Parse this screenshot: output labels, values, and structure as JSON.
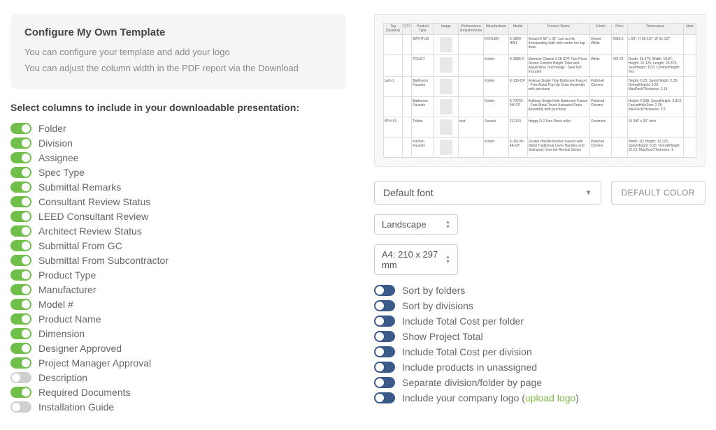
{
  "config_box": {
    "title": "Configure My Own Template",
    "line1": "You can configure your template and add your logo",
    "line2": "You can adjust the column width in the PDF report via the Download"
  },
  "section_title": "Select columns to include in your downloadable presentation:",
  "columns": [
    {
      "label": "Folder",
      "on": true
    },
    {
      "label": "Division",
      "on": true
    },
    {
      "label": "Assignee",
      "on": true
    },
    {
      "label": "Spec Type",
      "on": true
    },
    {
      "label": "Submittal Remarks",
      "on": true
    },
    {
      "label": "Consultant Review Status",
      "on": true
    },
    {
      "label": "LEED Consultant Review",
      "on": true
    },
    {
      "label": "Architect Review Status",
      "on": true
    },
    {
      "label": "Submittal From GC",
      "on": true
    },
    {
      "label": "Submittal From Subcontractor",
      "on": true
    },
    {
      "label": "Product Type",
      "on": true
    },
    {
      "label": "Manufacturer",
      "on": true
    },
    {
      "label": "Model #",
      "on": true
    },
    {
      "label": "Product Name",
      "on": true
    },
    {
      "label": "Dimension",
      "on": true
    },
    {
      "label": "Designer Approved",
      "on": true
    },
    {
      "label": "Project Manager Approval",
      "on": true
    },
    {
      "label": "Description",
      "on": false
    },
    {
      "label": "Required Documents",
      "on": true
    },
    {
      "label": "Installation Guide",
      "on": false
    }
  ],
  "preview": {
    "headers": [
      "Tag (Symbol)",
      "QTY",
      "Product Type",
      "Image",
      "Performance Requirements",
      "Manufacturer",
      "Model",
      "Product Name",
      "Finish",
      "Price",
      "Dimensions",
      "Note"
    ],
    "col_widths": [
      "6%",
      "3%",
      "7%",
      "8%",
      "8%",
      "8%",
      "6%",
      "20%",
      "7%",
      "5%",
      "18%",
      "4%"
    ],
    "rows": [
      {
        "tag": "",
        "qty": "",
        "type": "BATHTUB",
        "mfr": "KOHLER",
        "model": "K-1800-HW1",
        "name": "Abrazo® 66\" x 32\" cast acrylic freestanding bath with center toe-top drain",
        "finish": "Honed White",
        "price": "5685.0",
        "dims": "L 66\", H 28-1/2\", W 31-1/2\"",
        "note": ""
      },
      {
        "tag": "",
        "qty": "",
        "type": "TOILET",
        "mfr": "Kohler",
        "model": "K-3986-0",
        "name": "Memoirs Classic 1.28 GPF Two-Piece Round Comfort Height Toilet with AquaPiston Technology - Seat Not Included",
        "finish": "White",
        "price": "432.75",
        "dims": "Depth: 28.375; Width: 18.87; Height: 31.125; Length: 28.375; SeatHeight: 16.5; ComfortHeight: Yes",
        "note": ""
      },
      {
        "tag": "bath-1",
        "qty": "",
        "type": "Bathroom Faucets",
        "mfr": "Kohler",
        "model": "K-139-CP",
        "name": "Antique Single Hole Bathroom Faucet - Free Metal Pop-Up Drain Assembly with purchase",
        "finish": "Polished Chrome",
        "price": "",
        "dims": "Height: 6.25; SpoutHeight: 2.25; OverallHeight: 6.25; MaxDeckThickness: 2.18",
        "note": ""
      },
      {
        "tag": "",
        "qty": "",
        "type": "Bathroom Faucets",
        "mfr": "Kohler",
        "model": "K-72762-9M-CP",
        "name": "Artifacts Single Hole Bathroom Faucet - Free Metal Touch Activated Drain Assembly with purchase",
        "finish": "Polished Chrome",
        "price": "",
        "dims": "Height: 6.938; SpoutHeight: 3.813; FaucetHoleSize: 2.25; MaxDeckThickness: 2.5",
        "note": ""
      },
      {
        "tag": "BTH-51",
        "qty": "",
        "type": "Toilets",
        "mfr": "Duravit",
        "perf": "test",
        "model": "212101",
        "name": "Happy D.2 One-Piece toilet",
        "finish": "Ceramics",
        "price": "",
        "dims": "15 3/8\" x 26\" Inch",
        "note": ""
      },
      {
        "tag": "",
        "qty": "",
        "type": "Kitchen Faucets",
        "mfr": "Kohler",
        "model": "K-16109-4A-CP",
        "name": "Double Handle Kitchen Faucet with Metal Traditional Lever Handles and Sidespray from the Revival Series",
        "finish": "Polished Chrome",
        "price": "",
        "dims": "Width: 10; Height: 12.125; SpoutHeight: 8.25; OverallHeight: 12.13; MaxDeckThickness: 1",
        "note": ""
      }
    ]
  },
  "font_select": "Default font",
  "default_color_btn": "DEFAULT COLOR",
  "orientation": "Landscape",
  "paper_size": "A4: 210 x 297 mm",
  "options": [
    {
      "label": "Sort by folders"
    },
    {
      "label": "Sort by divisions"
    },
    {
      "label": "Include Total Cost per folder"
    },
    {
      "label": "Show Project Total"
    },
    {
      "label": "Include Total Cost per division"
    },
    {
      "label": "Include products in unassigned"
    },
    {
      "label": "Separate division/folder by page"
    }
  ],
  "logo_option_prefix": "Include your company logo (",
  "logo_option_link": "upload logo",
  "logo_option_suffix": ")",
  "colors": {
    "toggle_on": "#6fbf4a",
    "toggle_off": "#d0d0d0",
    "toggle_blue": "#3a5a8a",
    "link": "#7fb842"
  }
}
